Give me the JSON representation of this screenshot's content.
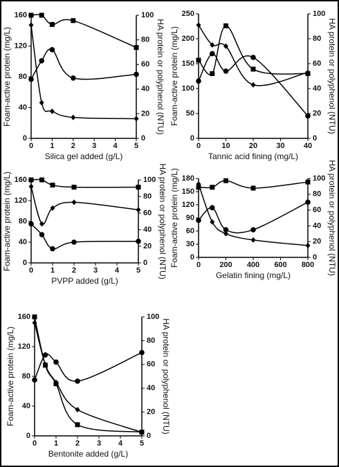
{
  "chart_data": [
    {
      "type": "line",
      "x_label": "Silica gel added (g/L)",
      "y_label": "Foam-active protein (mg/L)",
      "y2_label": "HA protein or polyphenol (NTU)",
      "x": [
        0,
        0.5,
        1,
        2,
        5
      ],
      "xlim": [
        0,
        5
      ],
      "xticks": [
        0,
        1,
        2,
        3,
        4,
        5
      ],
      "ylim": [
        0,
        160
      ],
      "yticks": [
        0,
        40,
        80,
        120,
        160
      ],
      "y2lim": [
        0,
        100
      ],
      "y2ticks": [
        0,
        20,
        40,
        60,
        80,
        100
      ],
      "series": [
        {
          "marker": "square",
          "color": "#000000",
          "values": [
            160,
            160,
            148,
            153,
            118
          ]
        },
        {
          "marker": "diamond",
          "color": "#000000",
          "axis": "y2",
          "values": [
            92,
            29,
            22,
            17,
            16
          ]
        },
        {
          "marker": "circle",
          "color": "#000000",
          "axis": "y2",
          "values": [
            48,
            63,
            72,
            49,
            52
          ]
        }
      ]
    },
    {
      "type": "line",
      "x_label": "Tannic acid fining (mg/L)",
      "y_label": "Foam-active protein (mg/L)",
      "y2_label": "HA protein or polyphenol (NTU)",
      "x": [
        0,
        5,
        10,
        20,
        40
      ],
      "xlim": [
        0,
        40
      ],
      "xticks": [
        0,
        10,
        20,
        30,
        40
      ],
      "ylim": [
        0,
        250
      ],
      "yticks": [
        0,
        50,
        100,
        150,
        200,
        250
      ],
      "y2lim": [
        0,
        100
      ],
      "y2ticks": [
        0,
        20,
        40,
        60,
        80,
        100
      ],
      "series": [
        {
          "marker": "square",
          "color": "#000000",
          "values": [
            157,
            130,
            226,
            139,
            130
          ]
        },
        {
          "marker": "diamond",
          "color": "#000000",
          "axis": "y2",
          "values": [
            91,
            75,
            74,
            43,
            53
          ]
        },
        {
          "marker": "circle",
          "color": "#000000",
          "axis": "y2",
          "values": [
            46,
            68,
            54,
            65,
            18
          ]
        }
      ]
    },
    {
      "type": "line",
      "x_label": "PVPP added (g/L)",
      "y_label": "Foam-active protein (mg/L)",
      "y2_label": "HA protein or polyphenol (NTU)",
      "x": [
        0,
        0.5,
        1,
        2,
        5
      ],
      "xlim": [
        0,
        5
      ],
      "xticks": [
        0,
        1,
        2,
        3,
        4,
        5
      ],
      "ylim": [
        0,
        160
      ],
      "yticks": [
        0,
        40,
        80,
        120,
        160
      ],
      "y2lim": [
        0,
        100
      ],
      "y2ticks": [
        0,
        20,
        40,
        60,
        80,
        100
      ],
      "series": [
        {
          "marker": "square",
          "color": "#000000",
          "values": [
            160,
            160,
            150,
            146,
            146
          ]
        },
        {
          "marker": "diamond",
          "color": "#000000",
          "axis": "y2",
          "values": [
            92,
            47,
            66,
            73,
            64
          ]
        },
        {
          "marker": "circle",
          "color": "#000000",
          "axis": "y2",
          "values": [
            47,
            34,
            17,
            25,
            26
          ]
        }
      ]
    },
    {
      "type": "line",
      "x_label": "Gelatin fining (mg/L)",
      "y_label": "Foam-active protein (mg/L)",
      "y2_label": "HA protein or polyphenol (NTU)",
      "x": [
        0,
        100,
        200,
        400,
        800
      ],
      "xlim": [
        0,
        800
      ],
      "xticks": [
        0,
        200,
        400,
        600,
        800
      ],
      "ylim": [
        0,
        180
      ],
      "yticks": [
        0,
        30,
        60,
        90,
        120,
        150,
        180
      ],
      "y2lim": [
        0,
        100
      ],
      "y2ticks": [
        0,
        20,
        40,
        60,
        80,
        100
      ],
      "series": [
        {
          "marker": "square",
          "color": "#000000",
          "values": [
            160,
            160,
            175,
            158,
            172
          ]
        },
        {
          "marker": "diamond",
          "color": "#000000",
          "axis": "y2",
          "values": [
            93,
            45,
            30,
            22,
            15
          ]
        },
        {
          "marker": "circle",
          "color": "#000000",
          "axis": "y2",
          "values": [
            47,
            63,
            35,
            35,
            70
          ]
        }
      ]
    },
    {
      "type": "line",
      "x_label": "Bentonite added (g/L)",
      "y_label": "Foam-active protein (mg/L)",
      "y2_label": "HA protein or polyphenol (NTU)",
      "x": [
        0,
        0.5,
        1,
        2,
        5
      ],
      "xlim": [
        0,
        5
      ],
      "xticks": [
        0,
        1,
        2,
        3,
        4,
        5
      ],
      "ylim": [
        0,
        160
      ],
      "yticks": [
        0,
        40,
        80,
        120,
        160
      ],
      "y2lim": [
        0,
        100
      ],
      "y2ticks": [
        0,
        20,
        40,
        60,
        80,
        100
      ],
      "series": [
        {
          "marker": "square",
          "color": "#000000",
          "values": [
            160,
            95,
            70,
            15,
            5
          ]
        },
        {
          "marker": "diamond",
          "color": "#000000",
          "axis": "y2",
          "values": [
            95,
            60,
            45,
            22,
            3
          ]
        },
        {
          "marker": "circle",
          "color": "#000000",
          "axis": "y2",
          "values": [
            47,
            68,
            62,
            46,
            70
          ]
        }
      ]
    }
  ]
}
